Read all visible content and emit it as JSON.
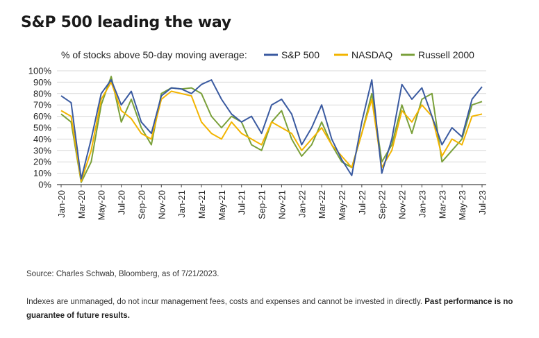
{
  "title": "S&P 500 leading the way",
  "source": "Source: Charles Schwab, Bloomberg, as of 7/21/2023.",
  "disclaimer": "Indexes are unmanaged, do not incur management fees, costs and expenses and cannot be invested in directly.",
  "disclaimer_bold": "Past performance is no guarantee of future results.",
  "chart_data": {
    "type": "line",
    "legend_title": "% of stocks above 50-day moving average:",
    "legend_placement": "top",
    "grid": "horizontal",
    "y_tick_labels": [
      "0%",
      "10%",
      "20%",
      "30%",
      "40%",
      "50%",
      "60%",
      "70%",
      "80%",
      "90%",
      "100%"
    ],
    "ylim": [
      0,
      100
    ],
    "x_tick_labels": [
      "Jan-20",
      "Mar-20",
      "May-20",
      "Jul-20",
      "Sep-20",
      "Nov-20",
      "Jan-21",
      "Mar-21",
      "May-21",
      "Jul-21",
      "Sep-21",
      "Nov-21",
      "Jan-22",
      "Mar-22",
      "May-22",
      "Jul-22",
      "Sep-22",
      "Nov-22",
      "Jan-23",
      "Mar-23",
      "May-23",
      "Jul-23"
    ],
    "x": [
      "Jan-20",
      "Feb-20",
      "Mar-20",
      "Apr-20",
      "May-20",
      "Jun-20",
      "Jul-20",
      "Aug-20",
      "Sep-20",
      "Oct-20",
      "Nov-20",
      "Dec-20",
      "Jan-21",
      "Feb-21",
      "Mar-21",
      "Apr-21",
      "May-21",
      "Jun-21",
      "Jul-21",
      "Aug-21",
      "Sep-21",
      "Oct-21",
      "Nov-21",
      "Dec-21",
      "Jan-22",
      "Feb-22",
      "Mar-22",
      "Apr-22",
      "May-22",
      "Jun-22",
      "Jul-22",
      "Aug-22",
      "Sep-22",
      "Oct-22",
      "Nov-22",
      "Dec-22",
      "Jan-23",
      "Feb-23",
      "Mar-23",
      "Apr-23",
      "May-23",
      "Jun-23",
      "Jul-23"
    ],
    "series": [
      {
        "name": "S&P 500",
        "color": "#3a5aa0",
        "values": [
          78,
          72,
          5,
          40,
          80,
          92,
          70,
          82,
          55,
          45,
          78,
          85,
          84,
          80,
          88,
          92,
          75,
          62,
          55,
          60,
          45,
          70,
          75,
          62,
          35,
          50,
          70,
          40,
          22,
          8,
          55,
          92,
          10,
          40,
          88,
          75,
          85,
          60,
          35,
          50,
          42,
          75,
          86
        ]
      },
      {
        "name": "NASDAQ",
        "color": "#f2b400",
        "values": [
          65,
          60,
          3,
          30,
          75,
          90,
          65,
          58,
          45,
          40,
          75,
          82,
          80,
          78,
          55,
          45,
          40,
          55,
          45,
          40,
          35,
          55,
          50,
          45,
          30,
          40,
          50,
          35,
          25,
          15,
          45,
          75,
          15,
          30,
          65,
          55,
          70,
          60,
          25,
          40,
          35,
          60,
          62
        ]
      },
      {
        "name": "Russell 2000",
        "color": "#7aa03a",
        "values": [
          62,
          55,
          2,
          20,
          70,
          95,
          55,
          75,
          50,
          35,
          80,
          85,
          84,
          85,
          80,
          60,
          50,
          60,
          55,
          35,
          30,
          55,
          65,
          40,
          25,
          35,
          55,
          35,
          20,
          15,
          45,
          80,
          20,
          35,
          70,
          45,
          75,
          80,
          20,
          30,
          40,
          70,
          73
        ]
      }
    ]
  }
}
